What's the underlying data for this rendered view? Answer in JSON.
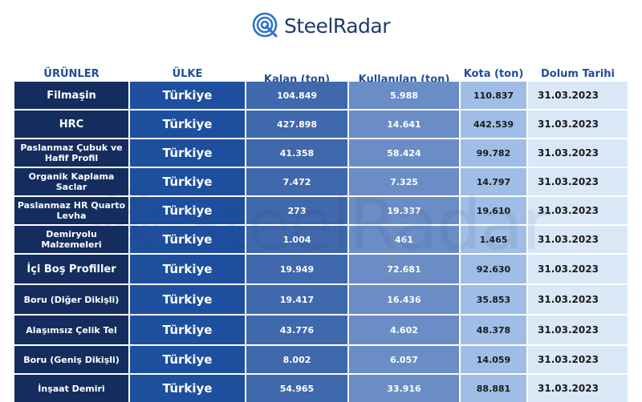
{
  "brand": {
    "name": "SteelRadar",
    "logo_icon": "radar-q-logo-icon",
    "color": "#1f3a6b"
  },
  "watermark": {
    "text": "SteelRadar"
  },
  "table": {
    "headers": {
      "urunler": "ÜRÜNLER",
      "ulke": "ÜLKE",
      "kalan": "Kalan (ton)",
      "kullanilan": "Kullanılan (ton)",
      "kota": "Kota (ton)",
      "dolum_tarihi": "Dolum Tarihi"
    },
    "rows": [
      {
        "urun": "Filmaşin",
        "ulke": "Türkiye",
        "kalan": "104.849",
        "kullanilan": "5.988",
        "kota": "110.837",
        "tarih": "31.03.2023"
      },
      {
        "urun": "HRC",
        "ulke": "Türkiye",
        "kalan": "427.898",
        "kullanilan": "14.641",
        "kota": "442.539",
        "tarih": "31.03.2023"
      },
      {
        "urun": "Paslanmaz Çubuk ve Hafif Profil",
        "ulke": "Türkiye",
        "kalan": "41.358",
        "kullanilan": "58.424",
        "kota": "99.782",
        "tarih": "31.03.2023"
      },
      {
        "urun": "Organik Kaplama Saclar",
        "ulke": "Türkiye",
        "kalan": "7.472",
        "kullanilan": "7.325",
        "kota": "14.797",
        "tarih": "31.03.2023"
      },
      {
        "urun": "Paslanmaz HR Quarto Levha",
        "ulke": "Türkiye",
        "kalan": "273",
        "kullanilan": "19.337",
        "kota": "19.610",
        "tarih": "31.03.2023"
      },
      {
        "urun": "Demiryolu Malzemeleri",
        "ulke": "Türkiye",
        "kalan": "1.004",
        "kullanilan": "461",
        "kota": "1.465",
        "tarih": "31.03.2023"
      },
      {
        "urun": "İçi Boş Profiller",
        "ulke": "Türkiye",
        "kalan": "19.949",
        "kullanilan": "72.681",
        "kota": "92.630",
        "tarih": "31.03.2023"
      },
      {
        "urun": "Boru (Diğer Dikişli)",
        "ulke": "Türkiye",
        "kalan": "19.417",
        "kullanilan": "16.436",
        "kota": "35.853",
        "tarih": "31.03.2023"
      },
      {
        "urun": "Alaşımsız Çelik Tel",
        "ulke": "Türkiye",
        "kalan": "43.776",
        "kullanilan": "4.602",
        "kota": "48.378",
        "tarih": "31.03.2023"
      },
      {
        "urun": "Boru (Geniş Dikişli)",
        "ulke": "Türkiye",
        "kalan": "8.002",
        "kullanilan": "6.057",
        "kota": "14.059",
        "tarih": "31.03.2023"
      },
      {
        "urun": "İnşaat Demiri",
        "ulke": "Türkiye",
        "kalan": "54.965",
        "kullanilan": "33.916",
        "kota": "88.881",
        "tarih": "31.03.2023"
      }
    ]
  },
  "colors": {
    "header_text": "#1f4e99",
    "urun_bg": "#152d5e",
    "ulke_bg": "#1d4f9e",
    "kalan_bg": "#3f68ad",
    "kullanilan_bg": "#6a8dc6",
    "kota_bg": "#9fbde6",
    "tarih_bg": "#d9e7f7"
  }
}
